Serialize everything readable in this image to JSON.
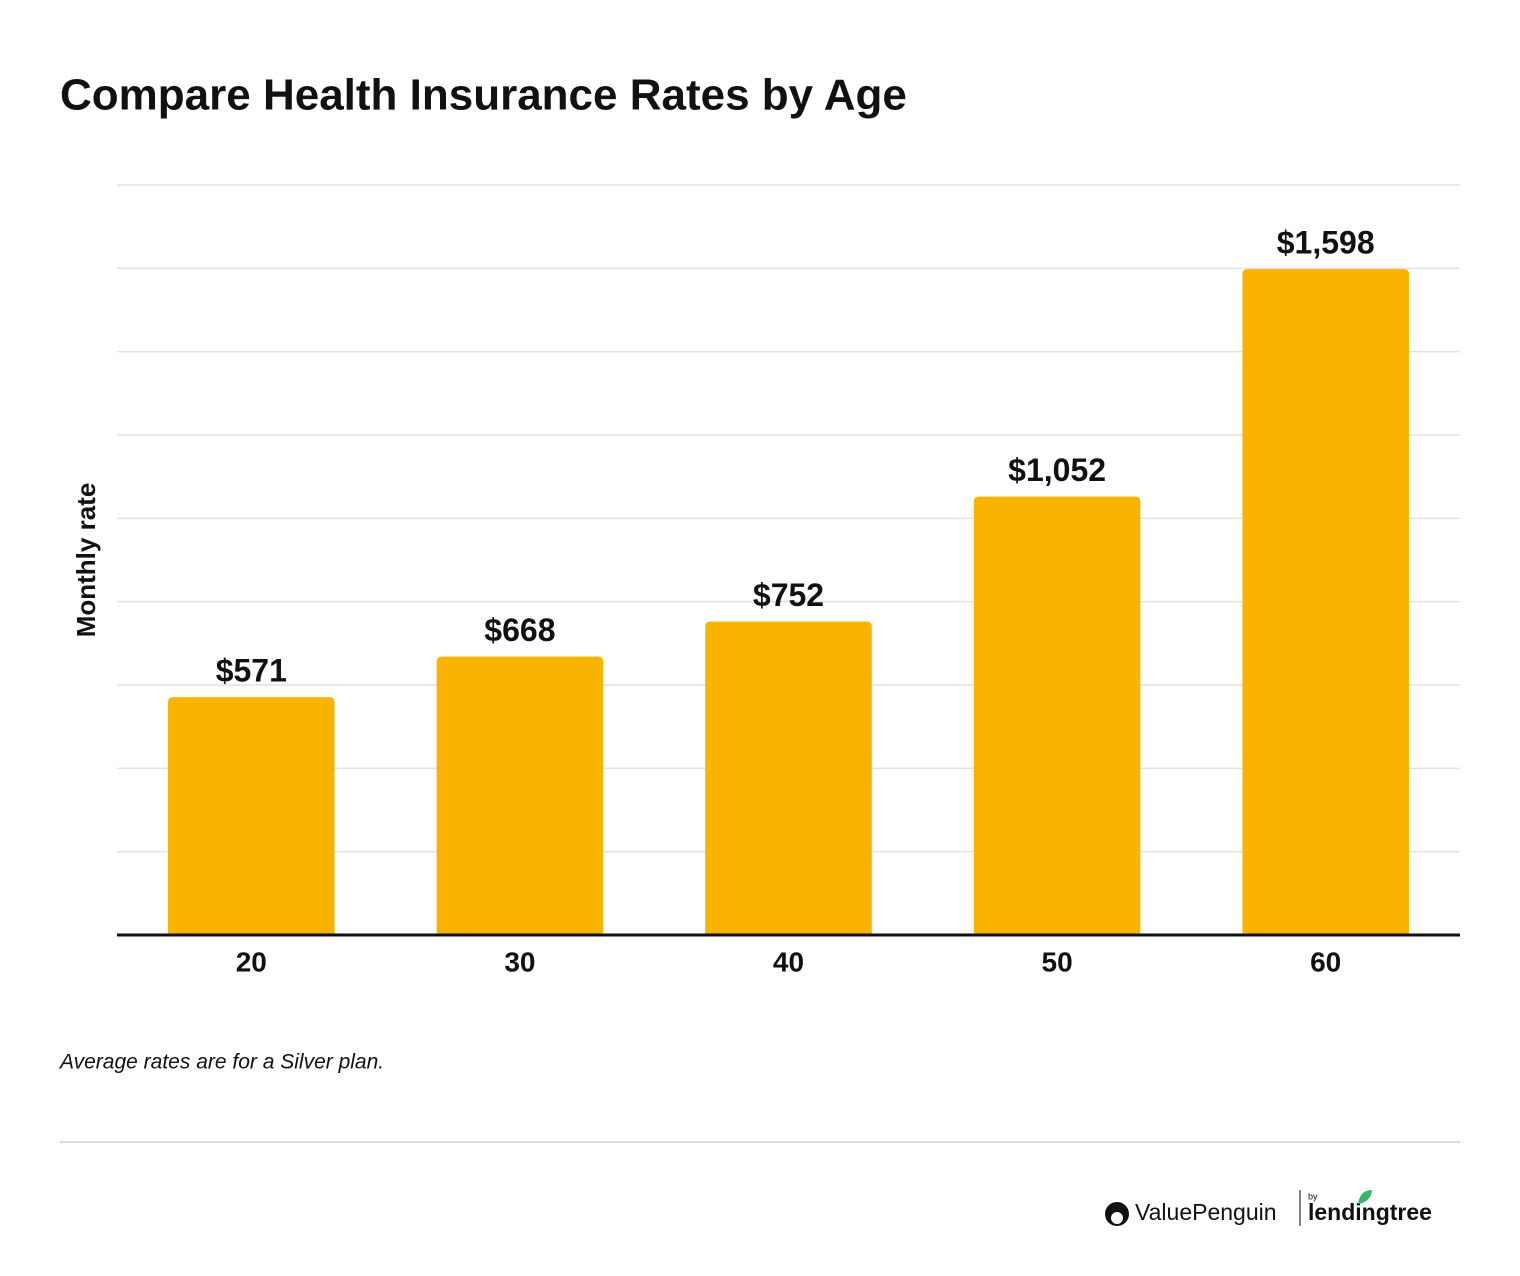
{
  "chart_data": {
    "type": "bar",
    "title": "Compare Health Insurance Rates by Age",
    "y_label": "Monthly rate",
    "categories": [
      "20",
      "30",
      "40",
      "50",
      "60"
    ],
    "values": [
      571,
      668,
      752,
      1052,
      1598
    ],
    "value_labels": [
      "$571",
      "$668",
      "$752",
      "$1,052",
      "$1,598"
    ],
    "color": "#f8b400",
    "ylim": [
      0,
      1800
    ],
    "yticks": [
      0,
      200,
      400,
      600,
      800,
      1000,
      1200,
      1400,
      1600,
      1800
    ],
    "grid": true,
    "footnote": "Average rates are for a Silver plan."
  },
  "logo": {
    "brand": "ValuePenguin",
    "by": "by",
    "parent": "lendingtree"
  }
}
